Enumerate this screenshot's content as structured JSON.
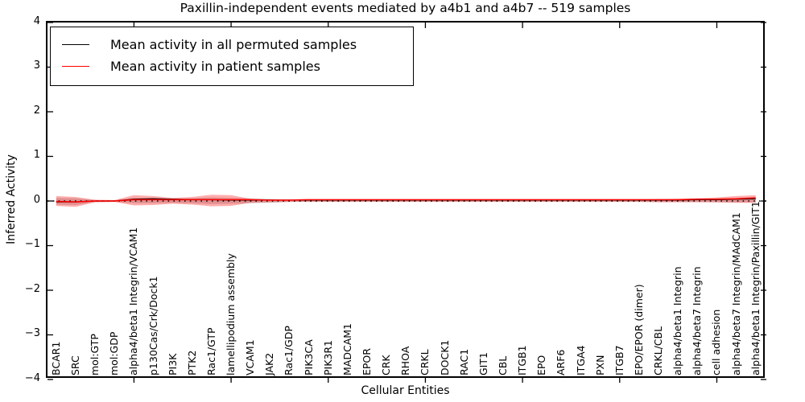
{
  "chart_data": {
    "type": "line",
    "title": "Paxillin-independent events mediated by a4b1 and a4b7 -- 519 samples",
    "xlabel": "Cellular Entities",
    "ylabel": "Inferred Activity",
    "ylim": [
      -4,
      4
    ],
    "yticks": [
      -4,
      -3,
      -2,
      -1,
      0,
      1,
      2,
      3,
      4
    ],
    "ytick_labels": [
      "−4",
      "−3",
      "−2",
      "−1",
      "0",
      "1",
      "2",
      "3",
      "4"
    ],
    "grid": false,
    "legend_position": "upper left",
    "samples_note": "519 samples",
    "categories": [
      "BCAR1",
      "SRC",
      "mol:GTP",
      "mol:GDP",
      "alpha4/beta1 Integrin/VCAM1",
      "p130Cas/Crk/Dock1",
      "PI3K",
      "PTK2",
      "Rac1/GTP",
      "lamellipodium assembly",
      "VCAM1",
      "JAK2",
      "Rac1/GDP",
      "PIK3CA",
      "PIK3R1",
      "MADCAM1",
      "EPOR",
      "CRK",
      "RHOA",
      "CRKL",
      "DOCK1",
      "RAC1",
      "GIT1",
      "CBL",
      "ITGB1",
      "EPO",
      "ARF6",
      "ITGA4",
      "PXN",
      "ITGB7",
      "EPO/EPOR (dimer)",
      "CRKL/CBL",
      "alpha4/beta1 Integrin",
      "alpha4/beta7 Integrin",
      "cell adhesion",
      "alpha4/beta7 Integrin/MAdCAM1",
      "alpha4/beta1 Integrin/Paxillin/GIT1"
    ],
    "x_major_tick_indices": [
      4,
      9,
      14,
      19,
      24,
      29,
      34
    ],
    "series": [
      {
        "name": "Mean activity in all permuted samples",
        "color": "#000000",
        "values": [
          -0.02,
          -0.02,
          0,
          0,
          0.04,
          0.05,
          0.04,
          0.03,
          0.03,
          0.02,
          0.02,
          0.02,
          0.02,
          0.02,
          0.02,
          0.02,
          0.02,
          0.02,
          0.02,
          0.02,
          0.02,
          0.02,
          0.02,
          0.02,
          0.02,
          0.02,
          0.02,
          0.02,
          0.02,
          0.02,
          0.02,
          0.02,
          0.02,
          0.03,
          0.03,
          0.04,
          0.05
        ]
      },
      {
        "name": "Mean activity in patient samples",
        "color": "#ff0000",
        "values": [
          -0.01,
          -0.02,
          0,
          0,
          0.03,
          0.03,
          0.03,
          0.03,
          0.03,
          0.03,
          0.03,
          0.02,
          0.02,
          0.03,
          0.03,
          0.03,
          0.03,
          0.03,
          0.03,
          0.03,
          0.03,
          0.03,
          0.03,
          0.03,
          0.03,
          0.03,
          0.03,
          0.03,
          0.03,
          0.03,
          0.03,
          0.03,
          0.03,
          0.04,
          0.04,
          0.05,
          0.07
        ]
      }
    ],
    "bands": [
      {
        "name": "permuted samples std band",
        "color": "rgba(60,60,60,0.22)",
        "upper": [
          0.07,
          0.06,
          0.02,
          0.015,
          0.07,
          0.07,
          0.05,
          0.06,
          0.08,
          0.07,
          0.06,
          0.05,
          0.02,
          0.015,
          0.015,
          0.015,
          0.015,
          0.015,
          0.015,
          0.015,
          0.015,
          0.015,
          0.015,
          0.015,
          0.015,
          0.015,
          0.015,
          0.015,
          0.015,
          0.015,
          0.02,
          0.02,
          0.03,
          0.04,
          0.05,
          0.06,
          0.06
        ],
        "lower": [
          -0.08,
          -0.09,
          -0.02,
          -0.015,
          -0.05,
          -0.05,
          -0.04,
          -0.05,
          -0.07,
          -0.06,
          -0.05,
          -0.04,
          -0.02,
          -0.015,
          -0.015,
          -0.015,
          -0.015,
          -0.015,
          -0.015,
          -0.015,
          -0.015,
          -0.015,
          -0.015,
          -0.015,
          -0.015,
          -0.015,
          -0.015,
          -0.015,
          -0.015,
          -0.015,
          -0.02,
          -0.02,
          -0.02,
          -0.02,
          -0.03,
          -0.03,
          -0.03
        ]
      },
      {
        "name": "patient samples std band",
        "color": "rgba(255,0,0,0.32)",
        "upper": [
          0.11,
          0.09,
          0.03,
          0.02,
          0.13,
          0.11,
          0.07,
          0.09,
          0.14,
          0.13,
          0.05,
          0.03,
          0.02,
          0.02,
          0.02,
          0.02,
          0.02,
          0.02,
          0.02,
          0.02,
          0.02,
          0.02,
          0.02,
          0.02,
          0.02,
          0.02,
          0.02,
          0.02,
          0.02,
          0.02,
          0.03,
          0.04,
          0.05,
          0.06,
          0.08,
          0.11,
          0.13
        ],
        "lower": [
          -0.11,
          -0.13,
          -0.03,
          -0.02,
          -0.1,
          -0.09,
          -0.06,
          -0.08,
          -0.12,
          -0.11,
          -0.04,
          -0.03,
          -0.02,
          -0.02,
          -0.02,
          -0.02,
          -0.02,
          -0.02,
          -0.02,
          -0.02,
          -0.02,
          -0.02,
          -0.02,
          -0.02,
          -0.02,
          -0.02,
          -0.02,
          -0.02,
          -0.02,
          -0.02,
          -0.02,
          -0.03,
          -0.03,
          -0.03,
          -0.03,
          -0.04,
          -0.04
        ]
      }
    ],
    "zero_line": {
      "y": 0,
      "style": "dotted",
      "color": "#000000"
    }
  },
  "legend": {
    "entries": [
      {
        "label": "Mean activity in all permuted samples",
        "color": "#000000"
      },
      {
        "label": "Mean activity in patient samples",
        "color": "#ff0000"
      }
    ]
  }
}
